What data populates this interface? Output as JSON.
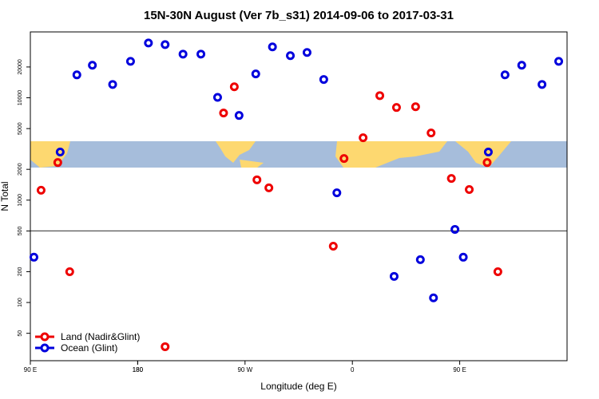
{
  "chart_data": {
    "type": "scatter",
    "title": "15N-30N August (Ver 7b_s31)   2014-09-06 to 2017-03-31",
    "x_label": "Longitude (deg E)",
    "y_label": "N Total",
    "log_y": true,
    "legend": "bottomleft",
    "xlim": [
      90,
      540
    ],
    "ylim": [
      27,
      44000
    ],
    "xticks": [
      {
        "value": 90,
        "label": "90 E"
      },
      180,
      {
        "value": 270,
        "label": "90 W"
      },
      {
        "value": 360,
        "label": "0"
      },
      {
        "value": 450,
        "label": "90 E"
      },
      180
    ],
    "yticks": [
      50,
      100,
      200,
      500,
      1000,
      2000,
      5000,
      10000,
      20000
    ],
    "reference_line": 500,
    "series": [
      {
        "name": "Land (Nadir&Glint)",
        "color": "#ee0000",
        "x": [
          99,
          113,
          123,
          203,
          252,
          261,
          280,
          290,
          344,
          353,
          369,
          383,
          397,
          413,
          426,
          443,
          458,
          473,
          482
        ],
        "values": [
          1250,
          2330,
          200,
          37,
          7100,
          12800,
          1580,
          1320,
          355,
          2550,
          4070,
          10500,
          8040,
          8180,
          4530,
          1630,
          1270,
          2330,
          200
        ]
      },
      {
        "name": "Ocean (Glint)",
        "color": "#0000dd",
        "x": [
          93,
          115,
          129,
          142,
          159,
          174,
          189,
          203,
          218,
          233,
          247,
          265,
          279,
          293,
          308,
          322,
          336,
          347,
          395,
          417,
          428,
          446,
          453,
          474,
          488,
          502,
          519,
          533
        ],
        "values": [
          277,
          2950,
          16750,
          20800,
          13500,
          22700,
          34300,
          33100,
          26700,
          26700,
          10100,
          6720,
          17100,
          31400,
          25800,
          27700,
          15100,
          1180,
          180,
          262,
          111,
          518,
          277,
          2950,
          16750,
          20800,
          13500,
          22700
        ]
      }
    ]
  }
}
